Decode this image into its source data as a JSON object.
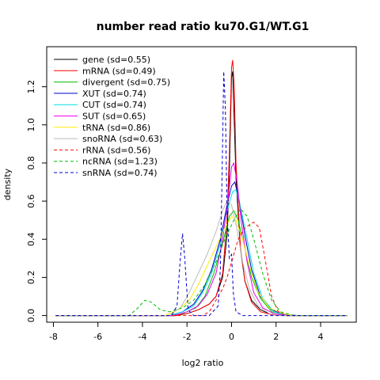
{
  "chart_data": {
    "type": "line",
    "title": "number read ratio ku70.G1/WT.G1",
    "xlabel": "log2 ratio",
    "ylabel": "density",
    "xlim": [
      -8.3,
      5.6
    ],
    "ylim": [
      -0.035,
      1.41
    ],
    "xticks": [
      -8,
      -6,
      -4,
      -2,
      0,
      2,
      4
    ],
    "yticks": [
      0.0,
      0.2,
      0.4,
      0.6,
      0.8,
      1.0,
      1.2
    ],
    "legend_position": "top-left",
    "grid": false,
    "series": [
      {
        "name": "gene (sd=0.55)",
        "color": "#000000",
        "dash": "solid",
        "points": [
          [
            -7.9,
            0
          ],
          [
            -2.5,
            0
          ],
          [
            -2.0,
            0.01
          ],
          [
            -1.5,
            0.03
          ],
          [
            -1.0,
            0.06
          ],
          [
            -0.7,
            0.1
          ],
          [
            -0.4,
            0.2
          ],
          [
            -0.2,
            0.42
          ],
          [
            -0.1,
            0.75
          ],
          [
            0.0,
            1.25
          ],
          [
            0.05,
            1.28
          ],
          [
            0.1,
            1.1
          ],
          [
            0.2,
            0.72
          ],
          [
            0.4,
            0.35
          ],
          [
            0.6,
            0.18
          ],
          [
            0.9,
            0.08
          ],
          [
            1.3,
            0.03
          ],
          [
            1.8,
            0.005
          ],
          [
            2.5,
            0
          ],
          [
            5.2,
            0
          ]
        ]
      },
      {
        "name": "mRNA (sd=0.49)",
        "color": "#ff0000",
        "dash": "solid",
        "points": [
          [
            -7.9,
            0
          ],
          [
            -2.5,
            0
          ],
          [
            -2.0,
            0.01
          ],
          [
            -1.5,
            0.03
          ],
          [
            -1.0,
            0.06
          ],
          [
            -0.7,
            0.1
          ],
          [
            -0.4,
            0.22
          ],
          [
            -0.2,
            0.5
          ],
          [
            -0.1,
            0.85
          ],
          [
            0.0,
            1.3
          ],
          [
            0.05,
            1.34
          ],
          [
            0.12,
            1.2
          ],
          [
            0.2,
            0.8
          ],
          [
            0.4,
            0.36
          ],
          [
            0.6,
            0.18
          ],
          [
            0.9,
            0.07
          ],
          [
            1.3,
            0.02
          ],
          [
            1.8,
            0.005
          ],
          [
            2.5,
            0
          ],
          [
            5.2,
            0
          ]
        ]
      },
      {
        "name": "divergent (sd=0.75)",
        "color": "#00bb00",
        "dash": "solid",
        "points": [
          [
            -7.9,
            0
          ],
          [
            -2.8,
            0
          ],
          [
            -2.2,
            0.01
          ],
          [
            -1.6,
            0.04
          ],
          [
            -1.2,
            0.1
          ],
          [
            -0.8,
            0.22
          ],
          [
            -0.4,
            0.38
          ],
          [
            -0.1,
            0.52
          ],
          [
            0.1,
            0.55
          ],
          [
            0.3,
            0.5
          ],
          [
            0.6,
            0.35
          ],
          [
            0.9,
            0.2
          ],
          [
            1.3,
            0.09
          ],
          [
            1.8,
            0.02
          ],
          [
            2.4,
            0.005
          ],
          [
            3.0,
            0
          ],
          [
            5.2,
            0
          ]
        ]
      },
      {
        "name": "XUT (sd=0.74)",
        "color": "#0000cc",
        "dash": "solid",
        "points": [
          [
            -7.9,
            0
          ],
          [
            -2.8,
            0
          ],
          [
            -2.2,
            0.02
          ],
          [
            -1.7,
            0.06
          ],
          [
            -1.3,
            0.13
          ],
          [
            -0.9,
            0.24
          ],
          [
            -0.5,
            0.4
          ],
          [
            -0.2,
            0.58
          ],
          [
            0.0,
            0.68
          ],
          [
            0.15,
            0.7
          ],
          [
            0.35,
            0.6
          ],
          [
            0.6,
            0.42
          ],
          [
            0.9,
            0.24
          ],
          [
            1.3,
            0.1
          ],
          [
            1.8,
            0.03
          ],
          [
            2.4,
            0.005
          ],
          [
            3.0,
            0
          ],
          [
            5.2,
            0
          ]
        ]
      },
      {
        "name": "CUT (sd=0.74)",
        "color": "#00dddd",
        "dash": "solid",
        "points": [
          [
            -7.9,
            0
          ],
          [
            -2.8,
            0
          ],
          [
            -2.2,
            0.02
          ],
          [
            -1.7,
            0.05
          ],
          [
            -1.3,
            0.12
          ],
          [
            -0.9,
            0.22
          ],
          [
            -0.5,
            0.38
          ],
          [
            -0.2,
            0.55
          ],
          [
            0.05,
            0.65
          ],
          [
            0.2,
            0.66
          ],
          [
            0.4,
            0.57
          ],
          [
            0.7,
            0.4
          ],
          [
            1.0,
            0.22
          ],
          [
            1.4,
            0.09
          ],
          [
            1.9,
            0.02
          ],
          [
            2.5,
            0
          ],
          [
            5.2,
            0
          ]
        ]
      },
      {
        "name": "SUT (sd=0.65)",
        "color": "#ee00ee",
        "dash": "solid",
        "points": [
          [
            -7.9,
            0
          ],
          [
            -2.6,
            0
          ],
          [
            -2.0,
            0.02
          ],
          [
            -1.5,
            0.05
          ],
          [
            -1.1,
            0.11
          ],
          [
            -0.7,
            0.22
          ],
          [
            -0.4,
            0.4
          ],
          [
            -0.15,
            0.62
          ],
          [
            0.0,
            0.78
          ],
          [
            0.1,
            0.8
          ],
          [
            0.25,
            0.7
          ],
          [
            0.45,
            0.48
          ],
          [
            0.7,
            0.28
          ],
          [
            1.0,
            0.12
          ],
          [
            1.4,
            0.04
          ],
          [
            1.9,
            0.01
          ],
          [
            2.5,
            0
          ],
          [
            5.2,
            0
          ]
        ]
      },
      {
        "name": "tRNA (sd=0.86)",
        "color": "#ffee00",
        "dash": "solid",
        "points": [
          [
            -7.9,
            0
          ],
          [
            -3.0,
            0
          ],
          [
            -2.4,
            0.03
          ],
          [
            -1.9,
            0.08
          ],
          [
            -1.5,
            0.16
          ],
          [
            -1.1,
            0.26
          ],
          [
            -0.7,
            0.36
          ],
          [
            -0.3,
            0.46
          ],
          [
            0.0,
            0.52
          ],
          [
            0.2,
            0.5
          ],
          [
            0.5,
            0.4
          ],
          [
            0.8,
            0.26
          ],
          [
            1.2,
            0.12
          ],
          [
            1.7,
            0.04
          ],
          [
            2.3,
            0.01
          ],
          [
            2.8,
            0
          ],
          [
            5.2,
            0
          ]
        ]
      },
      {
        "name": "snoRNA (sd=0.63)",
        "color": "#bbbbbb",
        "dash": "solid",
        "points": [
          [
            -7.9,
            0
          ],
          [
            -2.8,
            0
          ],
          [
            -2.3,
            0.04
          ],
          [
            -1.9,
            0.12
          ],
          [
            -1.5,
            0.22
          ],
          [
            -1.1,
            0.32
          ],
          [
            -0.7,
            0.44
          ],
          [
            -0.4,
            0.55
          ],
          [
            -0.2,
            0.6
          ],
          [
            0.0,
            0.58
          ],
          [
            0.25,
            0.45
          ],
          [
            0.5,
            0.28
          ],
          [
            0.8,
            0.14
          ],
          [
            1.2,
            0.05
          ],
          [
            1.7,
            0.01
          ],
          [
            2.2,
            0
          ],
          [
            5.2,
            0
          ]
        ]
      },
      {
        "name": "rRNA (sd=0.56)",
        "color": "#ff0000",
        "dash": "dashed",
        "points": [
          [
            -7.9,
            0
          ],
          [
            -1.3,
            0
          ],
          [
            -1.0,
            0.02
          ],
          [
            -0.8,
            0.06
          ],
          [
            -0.6,
            0.1
          ],
          [
            -0.4,
            0.14
          ],
          [
            -0.2,
            0.2
          ],
          [
            0.0,
            0.28
          ],
          [
            0.3,
            0.4
          ],
          [
            0.6,
            0.46
          ],
          [
            1.0,
            0.49
          ],
          [
            1.25,
            0.46
          ],
          [
            1.5,
            0.3
          ],
          [
            1.8,
            0.1
          ],
          [
            2.1,
            0.02
          ],
          [
            2.5,
            0
          ],
          [
            5.2,
            0
          ]
        ]
      },
      {
        "name": "ncRNA (sd=1.23)",
        "color": "#00bb00",
        "dash": "dashed",
        "points": [
          [
            -7.9,
            0
          ],
          [
            -4.6,
            0
          ],
          [
            -4.2,
            0.04
          ],
          [
            -3.9,
            0.08
          ],
          [
            -3.6,
            0.07
          ],
          [
            -3.2,
            0.03
          ],
          [
            -2.8,
            0.02
          ],
          [
            -2.2,
            0.04
          ],
          [
            -1.7,
            0.08
          ],
          [
            -1.2,
            0.16
          ],
          [
            -0.7,
            0.28
          ],
          [
            -0.3,
            0.4
          ],
          [
            0.1,
            0.5
          ],
          [
            0.4,
            0.56
          ],
          [
            0.7,
            0.52
          ],
          [
            1.0,
            0.4
          ],
          [
            1.4,
            0.22
          ],
          [
            1.8,
            0.08
          ],
          [
            2.2,
            0.02
          ],
          [
            2.8,
            0
          ],
          [
            5.2,
            0
          ]
        ]
      },
      {
        "name": "snRNA (sd=0.74)",
        "color": "#0000cc",
        "dash": "dashed",
        "points": [
          [
            -7.9,
            0
          ],
          [
            -2.7,
            0
          ],
          [
            -2.45,
            0.05
          ],
          [
            -2.3,
            0.3
          ],
          [
            -2.2,
            0.43
          ],
          [
            -2.1,
            0.3
          ],
          [
            -1.95,
            0.03
          ],
          [
            -1.7,
            0
          ],
          [
            -1.0,
            0
          ],
          [
            -0.6,
            0.05
          ],
          [
            -0.5,
            0.25
          ],
          [
            -0.4,
            0.9
          ],
          [
            -0.35,
            1.28
          ],
          [
            -0.28,
            1.1
          ],
          [
            -0.2,
            0.55
          ],
          [
            -0.1,
            0.3
          ],
          [
            0.0,
            0.32
          ],
          [
            0.08,
            0.12
          ],
          [
            0.2,
            0.02
          ],
          [
            0.5,
            0
          ],
          [
            5.2,
            0
          ]
        ]
      }
    ]
  }
}
